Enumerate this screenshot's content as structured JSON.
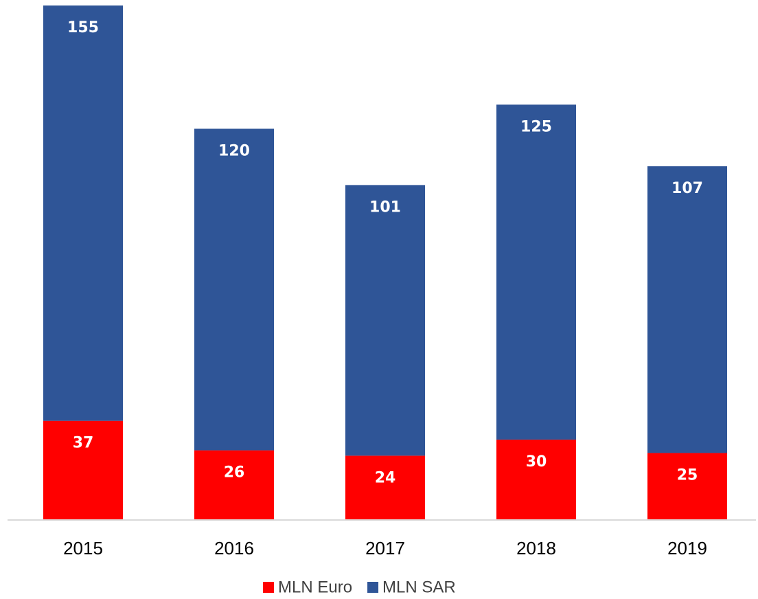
{
  "chart_data": {
    "type": "stacked_bar",
    "categories": [
      "2015",
      "2016",
      "2017",
      "2018",
      "2019"
    ],
    "series": [
      {
        "name": "MLN Euro",
        "color": "#ff0000",
        "values": [
          37,
          26,
          24,
          30,
          25
        ]
      },
      {
        "name": "MLN SAR",
        "color": "#2f5597",
        "values": [
          155,
          120,
          101,
          125,
          107
        ]
      }
    ],
    "legend": "bottom"
  }
}
